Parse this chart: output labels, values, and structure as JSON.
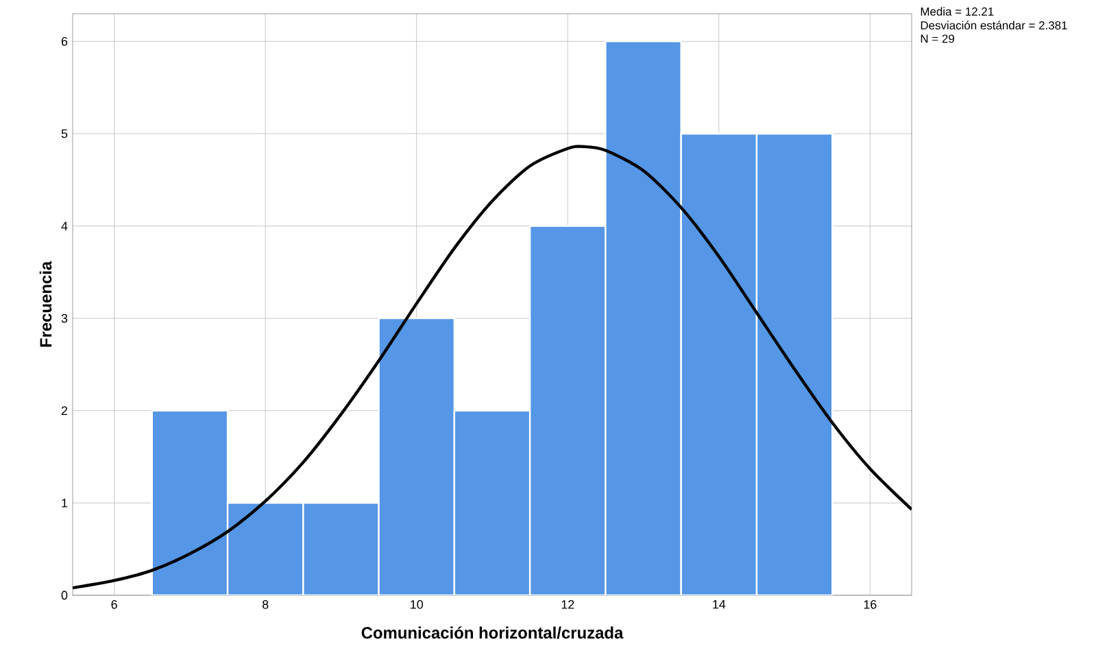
{
  "chart_data": {
    "type": "histogram",
    "xlabel": "Comunicación horizontal/cruzada",
    "ylabel": "Frecuencia",
    "annotations": [
      "Media = 12.21",
      "Desviación estándar = 2.381",
      "N = 29"
    ],
    "xlim": [
      5.45,
      16.55
    ],
    "xticks": [
      6,
      8,
      10,
      12,
      14,
      16
    ],
    "ylim": [
      0,
      6.3
    ],
    "yticks": [
      0,
      1,
      2,
      3,
      4,
      5,
      6
    ],
    "grid": true,
    "series": [
      {
        "color": "#5596e6",
        "bins": [
          6.5,
          7.5,
          8.5,
          9.5,
          10.5,
          11.5,
          12.5,
          13.5,
          14.5,
          15.5
        ],
        "values": [
          2,
          1,
          1,
          3,
          2,
          4,
          6,
          5,
          5
        ]
      },
      {
        "type": "line",
        "color": "#000000",
        "x": [
          5.45,
          6,
          6.5,
          7,
          7.5,
          8,
          8.5,
          9,
          9.5,
          10,
          10.5,
          11,
          11.5,
          12,
          12.21,
          12.5,
          13,
          13.5,
          14,
          14.5,
          15,
          15.5,
          16,
          16.55
        ],
        "values": [
          0.08,
          0.16,
          0.27,
          0.45,
          0.69,
          1.02,
          1.44,
          1.96,
          2.54,
          3.16,
          3.76,
          4.27,
          4.65,
          4.84,
          4.86,
          4.82,
          4.6,
          4.2,
          3.67,
          3.06,
          2.45,
          1.87,
          1.37,
          0.93
        ]
      }
    ]
  }
}
